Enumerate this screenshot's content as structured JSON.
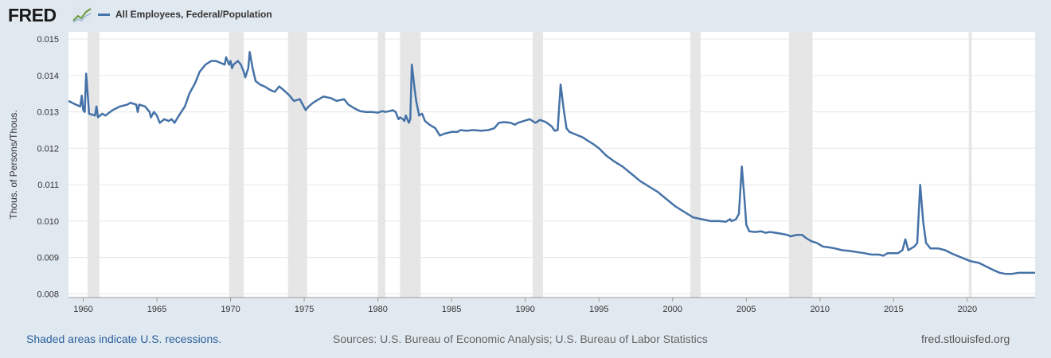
{
  "header": {
    "logo_text": "FRED",
    "logo_icon": "line-chart-icon"
  },
  "colors": {
    "series": "#4572a7",
    "recession": "#e6e6e6",
    "page_bg": "#e1e9f0",
    "plot_bg": "#ffffff",
    "link": "#2a5f9e"
  },
  "chart_data": {
    "type": "line",
    "title": "",
    "legend": [
      "All Employees, Federal/Population"
    ],
    "legend_position": "top-left",
    "ylabel": "Thous. of Persons/Thous.",
    "xlabel": "",
    "xlim": [
      1959.0,
      2024.6
    ],
    "ylim": [
      0.0079,
      0.0152
    ],
    "grid": "horizontal",
    "x_ticks": [
      "1960",
      "1965",
      "1970",
      "1975",
      "1980",
      "1985",
      "1990",
      "1995",
      "2000",
      "2005",
      "2010",
      "2015",
      "2020"
    ],
    "y_ticks": [
      "0.008",
      "0.009",
      "0.010",
      "0.011",
      "0.012",
      "0.013",
      "0.014",
      "0.015"
    ],
    "recessions": [
      [
        1960.3,
        1961.1
      ],
      [
        1969.9,
        1970.9
      ],
      [
        1973.9,
        1975.2
      ],
      [
        1980.0,
        1980.5
      ],
      [
        1981.5,
        1982.9
      ],
      [
        1990.5,
        1991.2
      ],
      [
        2001.2,
        2001.9
      ],
      [
        2007.9,
        2009.5
      ],
      [
        2020.1,
        2020.3
      ]
    ],
    "series": [
      {
        "name": "All Employees, Federal/Population",
        "points": [
          [
            1959.0,
            0.0133
          ],
          [
            1959.5,
            0.0132
          ],
          [
            1959.8,
            0.01315
          ],
          [
            1959.9,
            0.01345
          ],
          [
            1960.0,
            0.01305
          ],
          [
            1960.1,
            0.013
          ],
          [
            1960.2,
            0.01405
          ],
          [
            1960.3,
            0.0135
          ],
          [
            1960.4,
            0.01295
          ],
          [
            1960.8,
            0.0129
          ],
          [
            1960.9,
            0.01315
          ],
          [
            1961.0,
            0.01285
          ],
          [
            1961.3,
            0.01295
          ],
          [
            1961.5,
            0.0129
          ],
          [
            1962.0,
            0.01305
          ],
          [
            1962.5,
            0.01315
          ],
          [
            1963.0,
            0.0132
          ],
          [
            1963.2,
            0.01325
          ],
          [
            1963.6,
            0.0132
          ],
          [
            1963.7,
            0.013
          ],
          [
            1963.8,
            0.0132
          ],
          [
            1964.2,
            0.01315
          ],
          [
            1964.5,
            0.013
          ],
          [
            1964.6,
            0.01285
          ],
          [
            1964.8,
            0.013
          ],
          [
            1965.0,
            0.0129
          ],
          [
            1965.2,
            0.0127
          ],
          [
            1965.5,
            0.0128
          ],
          [
            1965.8,
            0.01275
          ],
          [
            1966.0,
            0.0128
          ],
          [
            1966.2,
            0.0127
          ],
          [
            1966.5,
            0.0129
          ],
          [
            1966.9,
            0.01315
          ],
          [
            1967.2,
            0.0135
          ],
          [
            1967.6,
            0.0138
          ],
          [
            1967.9,
            0.0141
          ],
          [
            1968.3,
            0.0143
          ],
          [
            1968.7,
            0.0144
          ],
          [
            1969.0,
            0.0144
          ],
          [
            1969.3,
            0.01435
          ],
          [
            1969.6,
            0.0143
          ],
          [
            1969.7,
            0.0145
          ],
          [
            1969.9,
            0.0143
          ],
          [
            1970.0,
            0.0144
          ],
          [
            1970.1,
            0.0142
          ],
          [
            1970.2,
            0.0143
          ],
          [
            1970.5,
            0.0144
          ],
          [
            1970.7,
            0.0143
          ],
          [
            1970.9,
            0.0141
          ],
          [
            1971.0,
            0.01395
          ],
          [
            1971.2,
            0.0142
          ],
          [
            1971.3,
            0.01465
          ],
          [
            1971.5,
            0.0142
          ],
          [
            1971.7,
            0.01385
          ],
          [
            1972.0,
            0.01375
          ],
          [
            1972.3,
            0.0137
          ],
          [
            1972.7,
            0.0136
          ],
          [
            1973.0,
            0.01355
          ],
          [
            1973.3,
            0.0137
          ],
          [
            1973.6,
            0.0136
          ],
          [
            1974.0,
            0.01345
          ],
          [
            1974.3,
            0.0133
          ],
          [
            1974.7,
            0.01335
          ],
          [
            1974.9,
            0.0132
          ],
          [
            1975.1,
            0.01305
          ],
          [
            1975.3,
            0.01315
          ],
          [
            1975.6,
            0.01325
          ],
          [
            1976.0,
            0.01335
          ],
          [
            1976.3,
            0.01342
          ],
          [
            1976.8,
            0.01338
          ],
          [
            1977.2,
            0.0133
          ],
          [
            1977.7,
            0.01335
          ],
          [
            1978.0,
            0.0132
          ],
          [
            1978.4,
            0.0131
          ],
          [
            1978.8,
            0.01302
          ],
          [
            1979.2,
            0.013
          ],
          [
            1979.6,
            0.013
          ],
          [
            1980.0,
            0.01298
          ],
          [
            1980.3,
            0.01302
          ],
          [
            1980.5,
            0.013
          ],
          [
            1980.8,
            0.01302
          ],
          [
            1981.0,
            0.01305
          ],
          [
            1981.2,
            0.013
          ],
          [
            1981.3,
            0.0129
          ],
          [
            1981.4,
            0.0128
          ],
          [
            1981.5,
            0.01285
          ],
          [
            1981.7,
            0.0128
          ],
          [
            1981.8,
            0.01275
          ],
          [
            1981.9,
            0.0129
          ],
          [
            1982.0,
            0.0128
          ],
          [
            1982.1,
            0.0127
          ],
          [
            1982.2,
            0.0128
          ],
          [
            1982.3,
            0.0143
          ],
          [
            1982.5,
            0.0136
          ],
          [
            1982.6,
            0.0133
          ],
          [
            1982.8,
            0.0129
          ],
          [
            1983.0,
            0.01295
          ],
          [
            1983.2,
            0.01275
          ],
          [
            1983.5,
            0.01265
          ],
          [
            1983.9,
            0.01255
          ],
          [
            1984.2,
            0.01235
          ],
          [
            1984.5,
            0.0124
          ],
          [
            1985.0,
            0.01245
          ],
          [
            1985.4,
            0.01245
          ],
          [
            1985.6,
            0.0125
          ],
          [
            1986.0,
            0.01248
          ],
          [
            1986.5,
            0.0125
          ],
          [
            1987.0,
            0.01248
          ],
          [
            1987.5,
            0.0125
          ],
          [
            1987.9,
            0.01255
          ],
          [
            1988.2,
            0.0127
          ],
          [
            1988.6,
            0.01272
          ],
          [
            1989.0,
            0.0127
          ],
          [
            1989.3,
            0.01265
          ],
          [
            1989.5,
            0.0127
          ],
          [
            1989.9,
            0.01275
          ],
          [
            1990.3,
            0.0128
          ],
          [
            1990.7,
            0.0127
          ],
          [
            1991.0,
            0.01278
          ],
          [
            1991.4,
            0.01272
          ],
          [
            1991.8,
            0.0126
          ],
          [
            1992.0,
            0.01248
          ],
          [
            1992.2,
            0.0125
          ],
          [
            1992.4,
            0.01375
          ],
          [
            1992.6,
            0.0131
          ],
          [
            1992.8,
            0.01255
          ],
          [
            1993.0,
            0.01245
          ],
          [
            1993.3,
            0.0124
          ],
          [
            1993.6,
            0.01235
          ],
          [
            1993.9,
            0.0123
          ],
          [
            1994.2,
            0.01222
          ],
          [
            1994.6,
            0.01212
          ],
          [
            1995.0,
            0.012
          ],
          [
            1995.5,
            0.0118
          ],
          [
            1996.0,
            0.01165
          ],
          [
            1996.6,
            0.0115
          ],
          [
            1997.2,
            0.0113
          ],
          [
            1997.8,
            0.0111
          ],
          [
            1998.4,
            0.01095
          ],
          [
            1999.0,
            0.0108
          ],
          [
            1999.6,
            0.0106
          ],
          [
            2000.2,
            0.0104
          ],
          [
            2000.8,
            0.01025
          ],
          [
            2001.4,
            0.0101
          ],
          [
            2002.0,
            0.01005
          ],
          [
            2002.6,
            0.01
          ],
          [
            2003.2,
            0.01
          ],
          [
            2003.6,
            0.00998
          ],
          [
            2003.9,
            0.01005
          ],
          [
            2004.0,
            0.01
          ],
          [
            2004.3,
            0.01005
          ],
          [
            2004.5,
            0.0102
          ],
          [
            2004.7,
            0.0115
          ],
          [
            2004.9,
            0.0105
          ],
          [
            2005.0,
            0.0099
          ],
          [
            2005.2,
            0.00972
          ],
          [
            2005.6,
            0.0097
          ],
          [
            2006.0,
            0.00972
          ],
          [
            2006.3,
            0.00968
          ],
          [
            2006.6,
            0.0097
          ],
          [
            2007.0,
            0.00968
          ],
          [
            2007.4,
            0.00965
          ],
          [
            2007.8,
            0.00962
          ],
          [
            2008.0,
            0.00958
          ],
          [
            2008.4,
            0.00962
          ],
          [
            2008.8,
            0.00962
          ],
          [
            2009.0,
            0.00955
          ],
          [
            2009.4,
            0.00945
          ],
          [
            2009.8,
            0.0094
          ],
          [
            2010.2,
            0.0093
          ],
          [
            2010.6,
            0.00928
          ],
          [
            2011.0,
            0.00925
          ],
          [
            2011.5,
            0.0092
          ],
          [
            2012.0,
            0.00918
          ],
          [
            2012.5,
            0.00915
          ],
          [
            2013.0,
            0.00912
          ],
          [
            2013.5,
            0.00908
          ],
          [
            2014.0,
            0.00908
          ],
          [
            2014.3,
            0.00905
          ],
          [
            2014.6,
            0.00912
          ],
          [
            2015.0,
            0.00912
          ],
          [
            2015.3,
            0.00912
          ],
          [
            2015.6,
            0.0092
          ],
          [
            2015.8,
            0.0095
          ],
          [
            2016.0,
            0.0092
          ],
          [
            2016.2,
            0.00925
          ],
          [
            2016.4,
            0.0093
          ],
          [
            2016.6,
            0.0094
          ],
          [
            2016.8,
            0.011
          ],
          [
            2017.0,
            0.01
          ],
          [
            2017.2,
            0.0094
          ],
          [
            2017.5,
            0.00925
          ],
          [
            2018.0,
            0.00925
          ],
          [
            2018.5,
            0.0092
          ],
          [
            2019.0,
            0.0091
          ],
          [
            2019.6,
            0.009
          ],
          [
            2020.2,
            0.0089
          ],
          [
            2020.8,
            0.00885
          ],
          [
            2021.3,
            0.00875
          ],
          [
            2021.8,
            0.00865
          ],
          [
            2022.2,
            0.00858
          ],
          [
            2022.6,
            0.00855
          ],
          [
            2023.0,
            0.00855
          ],
          [
            2023.5,
            0.00858
          ],
          [
            2024.0,
            0.00858
          ],
          [
            2024.6,
            0.00858
          ]
        ]
      }
    ]
  },
  "footer": {
    "recession_note": "Shaded areas indicate U.S. recessions.",
    "sources": "Sources: U.S. Bureau of Economic Analysis; U.S. Bureau of Labor Statistics",
    "url": "fred.stlouisfed.org"
  }
}
